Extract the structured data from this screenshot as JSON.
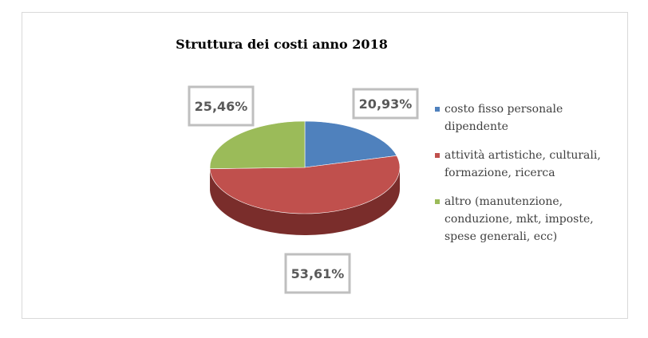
{
  "chart_data": {
    "type": "pie",
    "title": "Struttura dei costi anno 2018",
    "categories": [
      "costo fisso personale dipendente",
      "attività artistiche, culturali, formazione, ricerca",
      "altro (manutenzione, conduzione, mkt, imposte, spese generali, ecc)"
    ],
    "values": [
      20.93,
      53.61,
      25.46
    ],
    "data_labels": [
      "20,93%",
      "53,61%",
      "25,46%"
    ],
    "colors": [
      "#4f81bd",
      "#c0504d",
      "#9bbb59"
    ],
    "side_colors": [
      "#2c4d75",
      "#7a2d2b",
      "#5f7530"
    ],
    "legend_position": "right",
    "three_d": true
  },
  "legend": {
    "lines": [
      [
        "costo fisso personale",
        "dipendente"
      ],
      [
        "attività artistiche, culturali,",
        "formazione, ricerca"
      ],
      [
        "altro (manutenzione,",
        "conduzione, mkt, imposte,",
        "spese generali, ecc)"
      ]
    ]
  }
}
